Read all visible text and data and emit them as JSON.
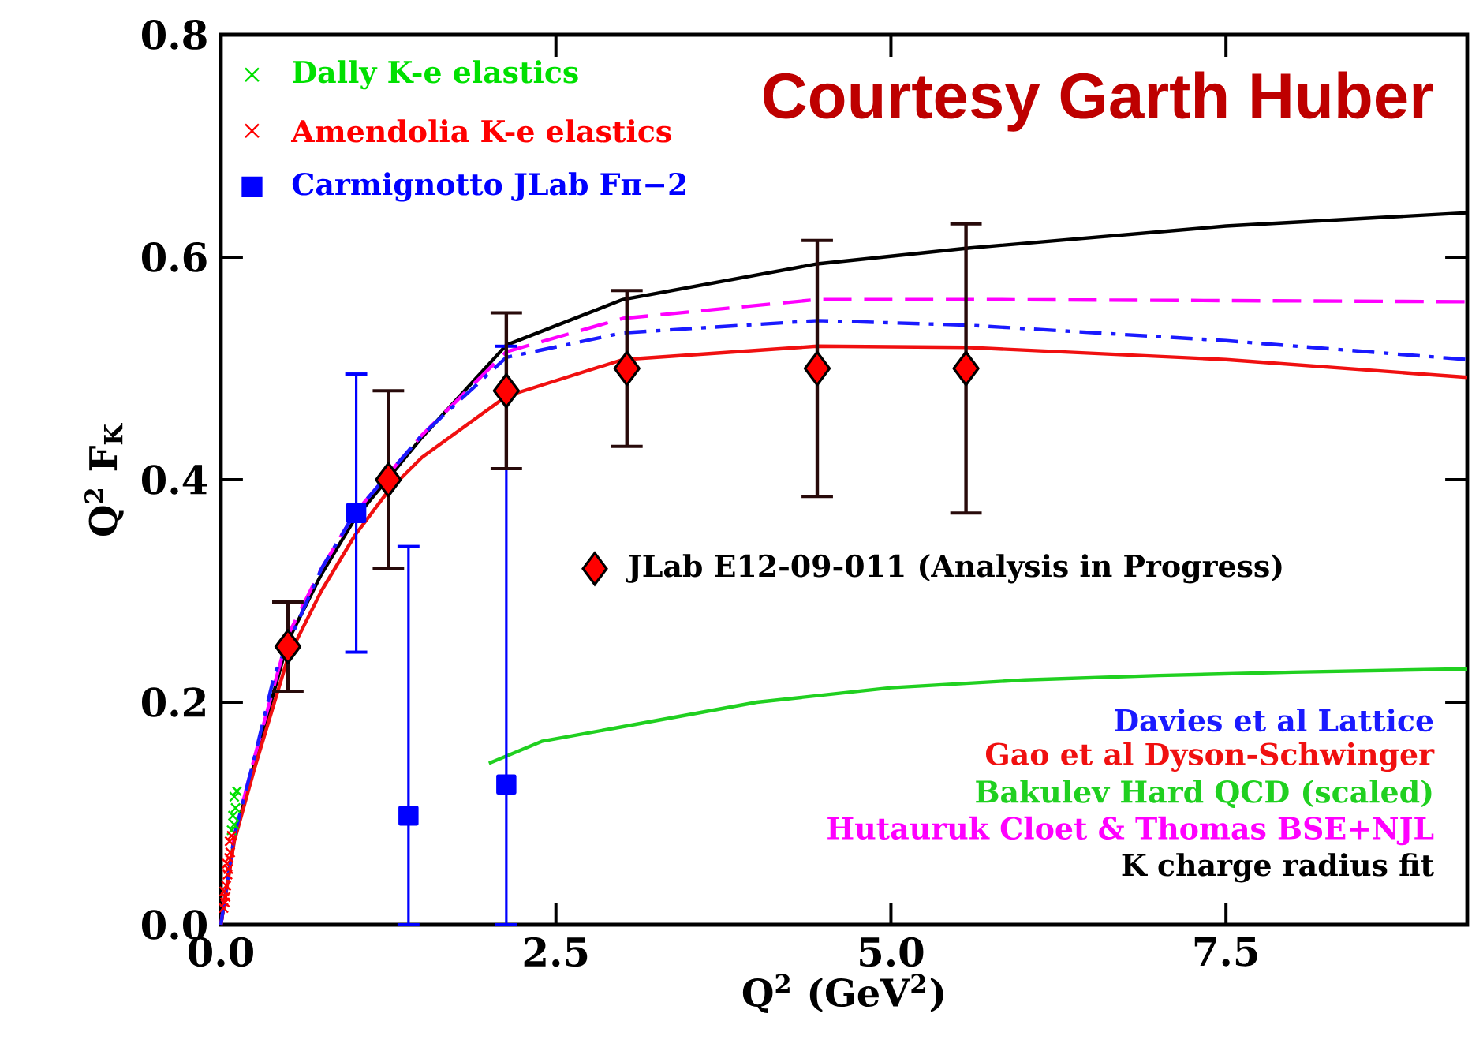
{
  "chart_data": {
    "type": "line",
    "xlabel": "Q$^{2}$ (GeV$^{2}$)",
    "ylabel": "Q$^{2}$ F$_{K}$",
    "xlim": [
      0,
      9.3
    ],
    "ylim": [
      0,
      0.8
    ],
    "xticks": [
      {
        "value": 0,
        "label": "0.0"
      },
      {
        "value": 2.5,
        "label": "2.5"
      },
      {
        "value": 5,
        "label": "5.0"
      },
      {
        "value": 7.5,
        "label": "7.5"
      }
    ],
    "yticks": [
      {
        "value": 0,
        "label": "0.0"
      },
      {
        "value": 0.2,
        "label": "0.2"
      },
      {
        "value": 0.4,
        "label": "0.4"
      },
      {
        "value": 0.6,
        "label": "0.6"
      },
      {
        "value": 0.8,
        "label": "0.8"
      }
    ],
    "grid": false,
    "legend": "top left",
    "annotations": [
      "Courtesy Garth Huber"
    ],
    "series": [
      {
        "name": "Dally K-e elastics",
        "type": "scatter",
        "marker": "cross",
        "color": "#00e000",
        "x": [
          0.08,
          0.09,
          0.1,
          0.1,
          0.11,
          0.12
        ],
        "values": [
          0.085,
          0.098,
          0.09,
          0.115,
          0.105,
          0.12
        ]
      },
      {
        "name": "Amendolia K-e elastics",
        "type": "scatter",
        "marker": "cross",
        "color": "#ff0000",
        "x": [
          0.02,
          0.03,
          0.025,
          0.035,
          0.04,
          0.05,
          0.045,
          0.055,
          0.06,
          0.07,
          0.065,
          0.08
        ],
        "values": [
          0.015,
          0.02,
          0.03,
          0.025,
          0.035,
          0.045,
          0.055,
          0.05,
          0.06,
          0.065,
          0.075,
          0.08
        ]
      },
      {
        "name": "Carmignotto JLab Fπ−2",
        "type": "scatter",
        "marker": "square",
        "color": "#0000ff",
        "x": [
          1.01,
          1.4,
          2.13
        ],
        "values": [
          0.37,
          0.098,
          0.126
        ],
        "errors": [
          0.125,
          [
            0.0,
            0.34
          ],
          [
            0.0,
            0.52
          ]
        ]
      },
      {
        "name": "JLab E12-09-011 (Analysis in Progress)",
        "type": "scatter",
        "marker": "diamond",
        "color": "#ff0000",
        "x": [
          0.5,
          1.25,
          2.13,
          3.03,
          4.45,
          5.56
        ],
        "values": [
          0.25,
          0.4,
          0.48,
          0.5,
          0.5,
          0.5
        ],
        "errors": [
          0.04,
          0.08,
          0.07,
          0.07,
          0.115,
          0.13
        ]
      },
      {
        "name": "Davies et al Lattice",
        "line_style": "dashdot",
        "color": "#1a1aff",
        "x": [
          0,
          0.1,
          0.25,
          0.4,
          0.75,
          1.0,
          1.5,
          2.13,
          3.0,
          4.45,
          5.56,
          7.5,
          9.3
        ],
        "values": [
          0,
          0.08,
          0.15,
          0.225,
          0.32,
          0.37,
          0.44,
          0.51,
          0.532,
          0.543,
          0.539,
          0.525,
          0.508
        ]
      },
      {
        "name": "Gao et al Dyson-Schwinger",
        "line_style": "solid",
        "color": "#f01010",
        "x": [
          0,
          0.1,
          0.25,
          0.5,
          0.75,
          1.0,
          1.25,
          1.5,
          2.13,
          3.0,
          4.45,
          5.56,
          7.5,
          9.3
        ],
        "values": [
          0,
          0.075,
          0.14,
          0.24,
          0.3,
          0.35,
          0.39,
          0.42,
          0.475,
          0.508,
          0.52,
          0.519,
          0.508,
          0.492
        ]
      },
      {
        "name": "Bakulev Hard QCD (scaled)",
        "line_style": "solid",
        "color": "#20d020",
        "x": [
          2.0,
          2.4,
          3.0,
          4.0,
          5.0,
          6.0,
          7.0,
          8.0,
          9.3
        ],
        "values": [
          0.145,
          0.165,
          0.178,
          0.2,
          0.213,
          0.22,
          0.224,
          0.227,
          0.23
        ]
      },
      {
        "name": "Hutauruk Cloet & Thomas BSE+NJL",
        "line_style": "dashed",
        "color": "#ff00ff",
        "x": [
          0,
          0.1,
          0.25,
          0.5,
          0.75,
          1.0,
          1.5,
          2.13,
          3.0,
          4.45,
          5.56,
          7.5,
          9.3
        ],
        "values": [
          0,
          0.08,
          0.15,
          0.26,
          0.32,
          0.37,
          0.44,
          0.515,
          0.545,
          0.562,
          0.562,
          0.561,
          0.56
        ]
      },
      {
        "name": "K charge radius fit",
        "line_style": "solid",
        "color": "#000000",
        "x": [
          0,
          0.1,
          0.25,
          0.5,
          0.75,
          1.0,
          1.5,
          2.13,
          3.0,
          4.45,
          5.56,
          7.5,
          9.3
        ],
        "values": [
          0,
          0.077,
          0.145,
          0.255,
          0.315,
          0.365,
          0.438,
          0.521,
          0.562,
          0.594,
          0.608,
          0.628,
          0.64
        ]
      }
    ]
  }
}
